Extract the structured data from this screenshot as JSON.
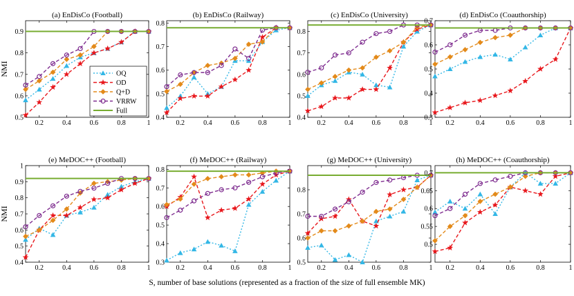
{
  "figure": {
    "xlabel": "S, number of base solutions (represented as a fraction of the size of full ensemble MK)",
    "ylabel": "NMI",
    "legend": [
      {
        "key": "OQ",
        "label": "OQ"
      },
      {
        "key": "OD",
        "label": "OD"
      },
      {
        "key": "QD",
        "label": "Q+D"
      },
      {
        "key": "VRRW",
        "label": "VRRW"
      },
      {
        "key": "Full",
        "label": "Full"
      }
    ]
  },
  "styles": {
    "OQ": {
      "color": "#33b7e6",
      "dash": "2,2.5",
      "marker": "triangle"
    },
    "OD": {
      "color": "#e8171c",
      "dash": "5,3",
      "marker": "star"
    },
    "QD": {
      "color": "#e38a1a",
      "dash": "5,3",
      "marker": "diamond"
    },
    "VRRW": {
      "color": "#7e2c8f",
      "dash": "5,3",
      "marker": "circle"
    },
    "Full": {
      "color": "#77ac30",
      "dash": "",
      "marker": "none"
    }
  },
  "chart_data": [
    {
      "type": "line",
      "title": "(a) EnDisCo (Football)",
      "ylim": [
        0.5,
        0.95
      ],
      "yticks": [
        0.5,
        0.6,
        0.7,
        0.8,
        0.9
      ],
      "yticklabels": [
        "0.5",
        "0.6",
        "0.7",
        "0.8",
        "0.9"
      ],
      "xlim": [
        0.1,
        1.0
      ],
      "xticks": [
        0.2,
        0.4,
        0.6,
        0.8,
        1.0
      ],
      "xticklabels": [
        "0.2",
        "0.4",
        "0.6",
        "0.8",
        "1"
      ],
      "x": [
        0.1,
        0.2,
        0.3,
        0.4,
        0.5,
        0.6,
        0.7,
        0.8,
        0.9,
        1.0
      ],
      "series": [
        {
          "name": "OQ",
          "values": [
            0.58,
            0.63,
            0.68,
            0.74,
            0.78,
            0.8,
            0.82,
            0.85,
            0.9,
            0.9
          ]
        },
        {
          "name": "OD",
          "values": [
            0.51,
            0.57,
            0.64,
            0.7,
            0.75,
            0.8,
            0.82,
            0.85,
            0.9,
            0.9
          ]
        },
        {
          "name": "QD",
          "values": [
            0.63,
            0.67,
            0.71,
            0.77,
            0.79,
            0.83,
            0.9,
            0.9,
            0.9,
            0.9
          ]
        },
        {
          "name": "VRRW",
          "values": [
            0.65,
            0.69,
            0.75,
            0.79,
            0.82,
            0.9,
            0.9,
            0.9,
            0.9,
            0.9
          ]
        },
        {
          "name": "Full",
          "values": [
            0.9,
            0.9,
            0.9,
            0.9,
            0.9,
            0.9,
            0.9,
            0.9,
            0.9,
            0.9
          ]
        }
      ]
    },
    {
      "type": "line",
      "title": "(b) EnDisCo (Railway)",
      "ylim": [
        0.4,
        0.81
      ],
      "yticks": [
        0.4,
        0.5,
        0.6,
        0.7,
        0.8
      ],
      "yticklabels": [
        "0.4",
        "0.5",
        "0.6",
        "0.7",
        "0.8"
      ],
      "xlim": [
        0.1,
        1.0
      ],
      "xticks": [
        0.2,
        0.4,
        0.6,
        0.8,
        1.0
      ],
      "xticklabels": [
        "0.2",
        "0.4",
        "0.6",
        "0.8",
        "1"
      ],
      "x": [
        0.1,
        0.2,
        0.3,
        0.4,
        0.5,
        0.6,
        0.7,
        0.8,
        0.9,
        1.0
      ],
      "series": [
        {
          "name": "OQ",
          "values": [
            0.44,
            0.49,
            0.57,
            0.5,
            0.53,
            0.64,
            0.64,
            0.72,
            0.77,
            0.78
          ]
        },
        {
          "name": "OD",
          "values": [
            0.42,
            0.48,
            0.49,
            0.49,
            0.53,
            0.56,
            0.6,
            0.74,
            0.78,
            0.78
          ]
        },
        {
          "name": "QD",
          "values": [
            0.51,
            0.54,
            0.59,
            0.62,
            0.63,
            0.65,
            0.71,
            0.72,
            0.78,
            0.78
          ]
        },
        {
          "name": "VRRW",
          "values": [
            0.53,
            0.58,
            0.59,
            0.59,
            0.62,
            0.69,
            0.65,
            0.77,
            0.78,
            0.78
          ]
        },
        {
          "name": "Full",
          "values": [
            0.78,
            0.78,
            0.78,
            0.78,
            0.78,
            0.78,
            0.78,
            0.78,
            0.78,
            0.78
          ]
        }
      ]
    },
    {
      "type": "line",
      "title": "(c) EnDisCo (University)",
      "ylim": [
        0.4,
        0.85
      ],
      "yticks": [
        0.4,
        0.5,
        0.6,
        0.7,
        0.8
      ],
      "yticklabels": [
        "0.4",
        "0.5",
        "0.6",
        "0.7",
        "0.8"
      ],
      "xlim": [
        0.1,
        1.0
      ],
      "xticks": [
        0.2,
        0.4,
        0.6,
        0.8,
        1.0
      ],
      "xticklabels": [
        "0.2",
        "0.4",
        "0.6",
        "0.8",
        "1"
      ],
      "x": [
        0.1,
        0.2,
        0.3,
        0.4,
        0.5,
        0.6,
        0.7,
        0.8,
        0.9,
        1.0
      ],
      "series": [
        {
          "name": "OQ",
          "values": [
            0.5,
            0.55,
            0.57,
            0.61,
            0.6,
            0.55,
            0.54,
            0.73,
            0.8,
            0.83
          ]
        },
        {
          "name": "OD",
          "values": [
            0.43,
            0.45,
            0.49,
            0.49,
            0.53,
            0.53,
            0.63,
            0.75,
            0.81,
            0.83
          ]
        },
        {
          "name": "QD",
          "values": [
            0.53,
            0.56,
            0.59,
            0.62,
            0.63,
            0.68,
            0.71,
            0.75,
            0.82,
            0.83
          ]
        },
        {
          "name": "VRRW",
          "values": [
            0.61,
            0.63,
            0.69,
            0.7,
            0.75,
            0.79,
            0.8,
            0.83,
            0.83,
            0.83
          ]
        },
        {
          "name": "Full",
          "values": [
            0.83,
            0.83,
            0.83,
            0.83,
            0.83,
            0.83,
            0.83,
            0.83,
            0.83,
            0.83
          ]
        }
      ]
    },
    {
      "type": "line",
      "title": "(d) EnDisCo (Coauthorship)",
      "ylim": [
        0.3,
        0.7
      ],
      "yticks": [
        0.3,
        0.4,
        0.5,
        0.6,
        0.7
      ],
      "yticklabels": [
        "0.3",
        "0.4",
        "0.5",
        "0.6",
        "0.7"
      ],
      "xlim": [
        0.1,
        1.0
      ],
      "xticks": [
        0.2,
        0.4,
        0.6,
        0.8,
        1.0
      ],
      "xticklabels": [
        "0.2",
        "0.4",
        "0.6",
        "0.8",
        "1"
      ],
      "x": [
        0.1,
        0.2,
        0.3,
        0.4,
        0.5,
        0.6,
        0.7,
        0.8,
        0.9,
        1.0
      ],
      "series": [
        {
          "name": "OQ",
          "values": [
            0.47,
            0.5,
            0.53,
            0.55,
            0.56,
            0.54,
            0.59,
            0.64,
            0.67,
            0.67
          ]
        },
        {
          "name": "OD",
          "values": [
            0.32,
            0.34,
            0.36,
            0.37,
            0.39,
            0.41,
            0.45,
            0.5,
            0.54,
            0.67
          ]
        },
        {
          "name": "QD",
          "values": [
            0.52,
            0.55,
            0.58,
            0.61,
            0.63,
            0.64,
            0.67,
            0.67,
            0.67,
            0.67
          ]
        },
        {
          "name": "VRRW",
          "values": [
            0.57,
            0.6,
            0.64,
            0.66,
            0.66,
            0.67,
            0.67,
            0.67,
            0.67,
            0.67
          ]
        },
        {
          "name": "Full",
          "values": [
            0.67,
            0.67,
            0.67,
            0.67,
            0.67,
            0.67,
            0.67,
            0.67,
            0.67,
            0.67
          ]
        }
      ]
    },
    {
      "type": "line",
      "title": "(e) MeDOC++ (Football)",
      "ylim": [
        0.4,
        1.0
      ],
      "yticks": [
        0.4,
        0.5,
        0.6,
        0.7,
        0.8,
        0.9,
        1.0
      ],
      "yticklabels": [
        "0.4",
        "0.5",
        "0.6",
        "0.7",
        "0.8",
        "0.9",
        "1"
      ],
      "xlim": [
        0.1,
        1.0
      ],
      "xticks": [
        0.2,
        0.4,
        0.6,
        0.8,
        1.0
      ],
      "xticklabels": [
        "0.2",
        "0.4",
        "0.6",
        "0.8",
        "1"
      ],
      "x": [
        0.1,
        0.2,
        0.3,
        0.4,
        0.5,
        0.6,
        0.7,
        0.8,
        0.9,
        1.0
      ],
      "series": [
        {
          "name": "OQ",
          "values": [
            0.54,
            0.61,
            0.57,
            0.69,
            0.71,
            0.74,
            0.82,
            0.87,
            0.9,
            0.92
          ]
        },
        {
          "name": "OD",
          "values": [
            0.43,
            0.6,
            0.69,
            0.69,
            0.74,
            0.79,
            0.8,
            0.85,
            0.89,
            0.92
          ]
        },
        {
          "name": "QD",
          "values": [
            0.56,
            0.6,
            0.66,
            0.73,
            0.83,
            0.89,
            0.9,
            0.91,
            0.92,
            0.92
          ]
        },
        {
          "name": "VRRW",
          "values": [
            0.62,
            0.69,
            0.75,
            0.81,
            0.84,
            0.86,
            0.89,
            0.92,
            0.92,
            0.92
          ]
        },
        {
          "name": "Full",
          "values": [
            0.92,
            0.92,
            0.92,
            0.92,
            0.92,
            0.92,
            0.92,
            0.92,
            0.92,
            0.92
          ]
        }
      ]
    },
    {
      "type": "line",
      "title": "(f) MeDOC++ (Railway)",
      "ylim": [
        0.3,
        0.82
      ],
      "yticks": [
        0.3,
        0.4,
        0.5,
        0.6,
        0.7,
        0.8
      ],
      "yticklabels": [
        "0.3",
        "0.4",
        "0.5",
        "0.6",
        "0.7",
        "0.8"
      ],
      "xlim": [
        0.1,
        1.0
      ],
      "xticks": [
        0.2,
        0.4,
        0.6,
        0.8,
        1.0
      ],
      "xticklabels": [
        "0.2",
        "0.4",
        "0.6",
        "0.8",
        "1"
      ],
      "x": [
        0.1,
        0.2,
        0.3,
        0.4,
        0.5,
        0.6,
        0.7,
        0.8,
        0.9,
        1.0
      ],
      "series": [
        {
          "name": "OQ",
          "values": [
            0.31,
            0.35,
            0.37,
            0.41,
            0.39,
            0.36,
            0.61,
            0.68,
            0.74,
            0.79
          ]
        },
        {
          "name": "OD",
          "values": [
            0.6,
            0.65,
            0.76,
            0.54,
            0.58,
            0.59,
            0.64,
            0.72,
            0.77,
            0.79
          ]
        },
        {
          "name": "QD",
          "values": [
            0.61,
            0.64,
            0.72,
            0.75,
            0.76,
            0.77,
            0.77,
            0.78,
            0.79,
            0.79
          ]
        },
        {
          "name": "VRRW",
          "values": [
            0.54,
            0.58,
            0.63,
            0.67,
            0.69,
            0.7,
            0.73,
            0.76,
            0.78,
            0.79
          ]
        },
        {
          "name": "Full",
          "values": [
            0.79,
            0.79,
            0.79,
            0.79,
            0.79,
            0.79,
            0.79,
            0.79,
            0.79,
            0.79
          ]
        }
      ]
    },
    {
      "type": "line",
      "title": "(g) MeDOC++ (University)",
      "ylim": [
        0.5,
        0.9
      ],
      "yticks": [
        0.5,
        0.6,
        0.7,
        0.8
      ],
      "yticklabels": [
        "0.5",
        "0.6",
        "0.7",
        "0.8"
      ],
      "xlim": [
        0.1,
        1.0
      ],
      "xticks": [
        0.2,
        0.4,
        0.6,
        0.8,
        1.0
      ],
      "xticklabels": [
        "0.2",
        "0.4",
        "0.6",
        "0.8",
        "1"
      ],
      "x": [
        0.1,
        0.2,
        0.3,
        0.4,
        0.5,
        0.6,
        0.7,
        0.8,
        0.9,
        1.0
      ],
      "series": [
        {
          "name": "OQ",
          "values": [
            0.56,
            0.57,
            0.51,
            0.53,
            0.5,
            0.67,
            0.69,
            0.71,
            0.84,
            0.86
          ]
        },
        {
          "name": "OD",
          "values": [
            0.62,
            0.68,
            0.69,
            0.76,
            0.67,
            0.65,
            0.78,
            0.8,
            0.81,
            0.86
          ]
        },
        {
          "name": "QD",
          "values": [
            0.6,
            0.63,
            0.63,
            0.65,
            0.67,
            0.71,
            0.72,
            0.76,
            0.81,
            0.86
          ]
        },
        {
          "name": "VRRW",
          "values": [
            0.69,
            0.69,
            0.72,
            0.75,
            0.79,
            0.83,
            0.84,
            0.85,
            0.86,
            0.86
          ]
        },
        {
          "name": "Full",
          "values": [
            0.86,
            0.86,
            0.86,
            0.86,
            0.86,
            0.86,
            0.86,
            0.86,
            0.86,
            0.86
          ]
        }
      ]
    },
    {
      "type": "line",
      "title": "(h) MeDOC++ (Coauthorship)",
      "ylim": [
        0.45,
        0.72
      ],
      "yticks": [
        0.5,
        0.55,
        0.6,
        0.65,
        0.7
      ],
      "yticklabels": [
        "0.5",
        "0.55",
        "0.6",
        "0.65",
        "0.7"
      ],
      "xlim": [
        0.1,
        1.0
      ],
      "xticks": [
        0.2,
        0.4,
        0.6,
        0.8,
        1.0
      ],
      "xticklabels": [
        "0.2",
        "0.4",
        "0.6",
        "0.8",
        "1"
      ],
      "x": [
        0.1,
        0.2,
        0.3,
        0.4,
        0.5,
        0.6,
        0.7,
        0.8,
        0.9,
        1.0
      ],
      "series": [
        {
          "name": "OQ",
          "values": [
            0.59,
            0.62,
            0.6,
            0.64,
            0.585,
            0.66,
            0.7,
            0.67,
            0.67,
            0.7
          ]
        },
        {
          "name": "OD",
          "values": [
            0.48,
            0.49,
            0.56,
            0.59,
            0.61,
            0.66,
            0.65,
            0.64,
            0.69,
            0.7
          ]
        },
        {
          "name": "QD",
          "values": [
            0.51,
            0.55,
            0.58,
            0.62,
            0.64,
            0.66,
            0.69,
            0.7,
            0.7,
            0.7
          ]
        },
        {
          "name": "VRRW",
          "values": [
            0.58,
            0.6,
            0.64,
            0.67,
            0.68,
            0.69,
            0.7,
            0.7,
            0.7,
            0.7
          ]
        },
        {
          "name": "Full",
          "values": [
            0.7,
            0.7,
            0.7,
            0.7,
            0.7,
            0.7,
            0.7,
            0.7,
            0.7,
            0.7
          ]
        }
      ]
    }
  ]
}
